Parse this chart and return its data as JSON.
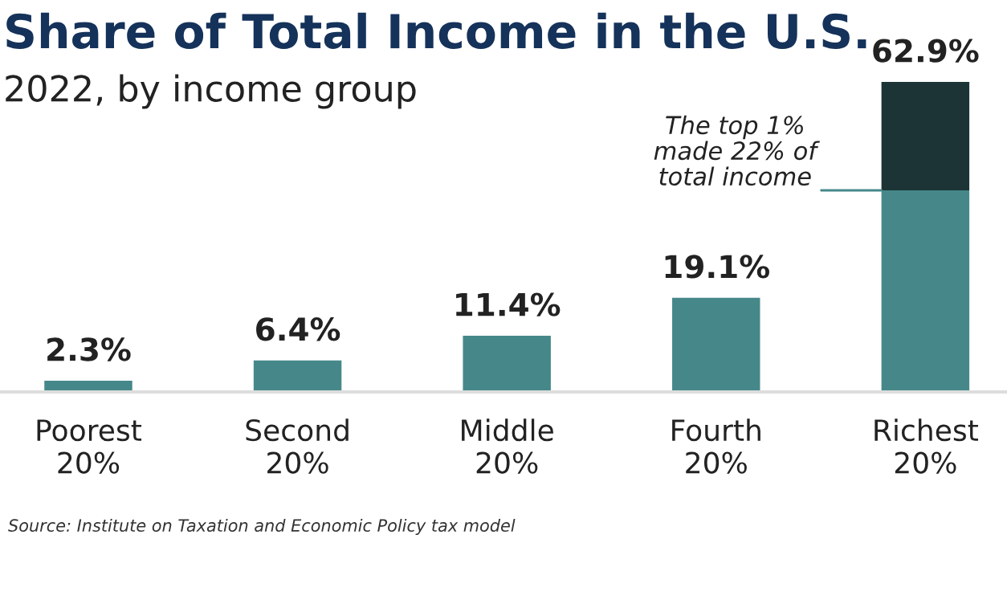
{
  "chart_data": {
    "type": "bar",
    "title": "Share of Total Income in the U.S.",
    "subtitle": "2022, by income group",
    "categories": [
      "Poorest\n20%",
      "Second\n20%",
      "Middle\n20%",
      "Fourth\n20%",
      "Richest\n20%"
    ],
    "stacked": true,
    "series": [
      {
        "color": "#46888a",
        "values": [
          2.3,
          6.4,
          11.4,
          19.1,
          40.9
        ],
        "value_labels": [
          "2.3%",
          "6.4%",
          "11.4%",
          "19.1%",
          null
        ]
      },
      {
        "color": "#1c3435",
        "values": [
          null,
          null,
          null,
          null,
          22
        ],
        "value_labels": [
          null,
          null,
          null,
          null,
          "The top 1%\nmade 22% of\ntotal income"
        ]
      }
    ],
    "totals": [
      null,
      null,
      null,
      null,
      "62.9%"
    ],
    "annotations": [
      "Source: Institute on Taxation and Economic Policy tax model"
    ],
    "grid": false,
    "legend": false
  }
}
